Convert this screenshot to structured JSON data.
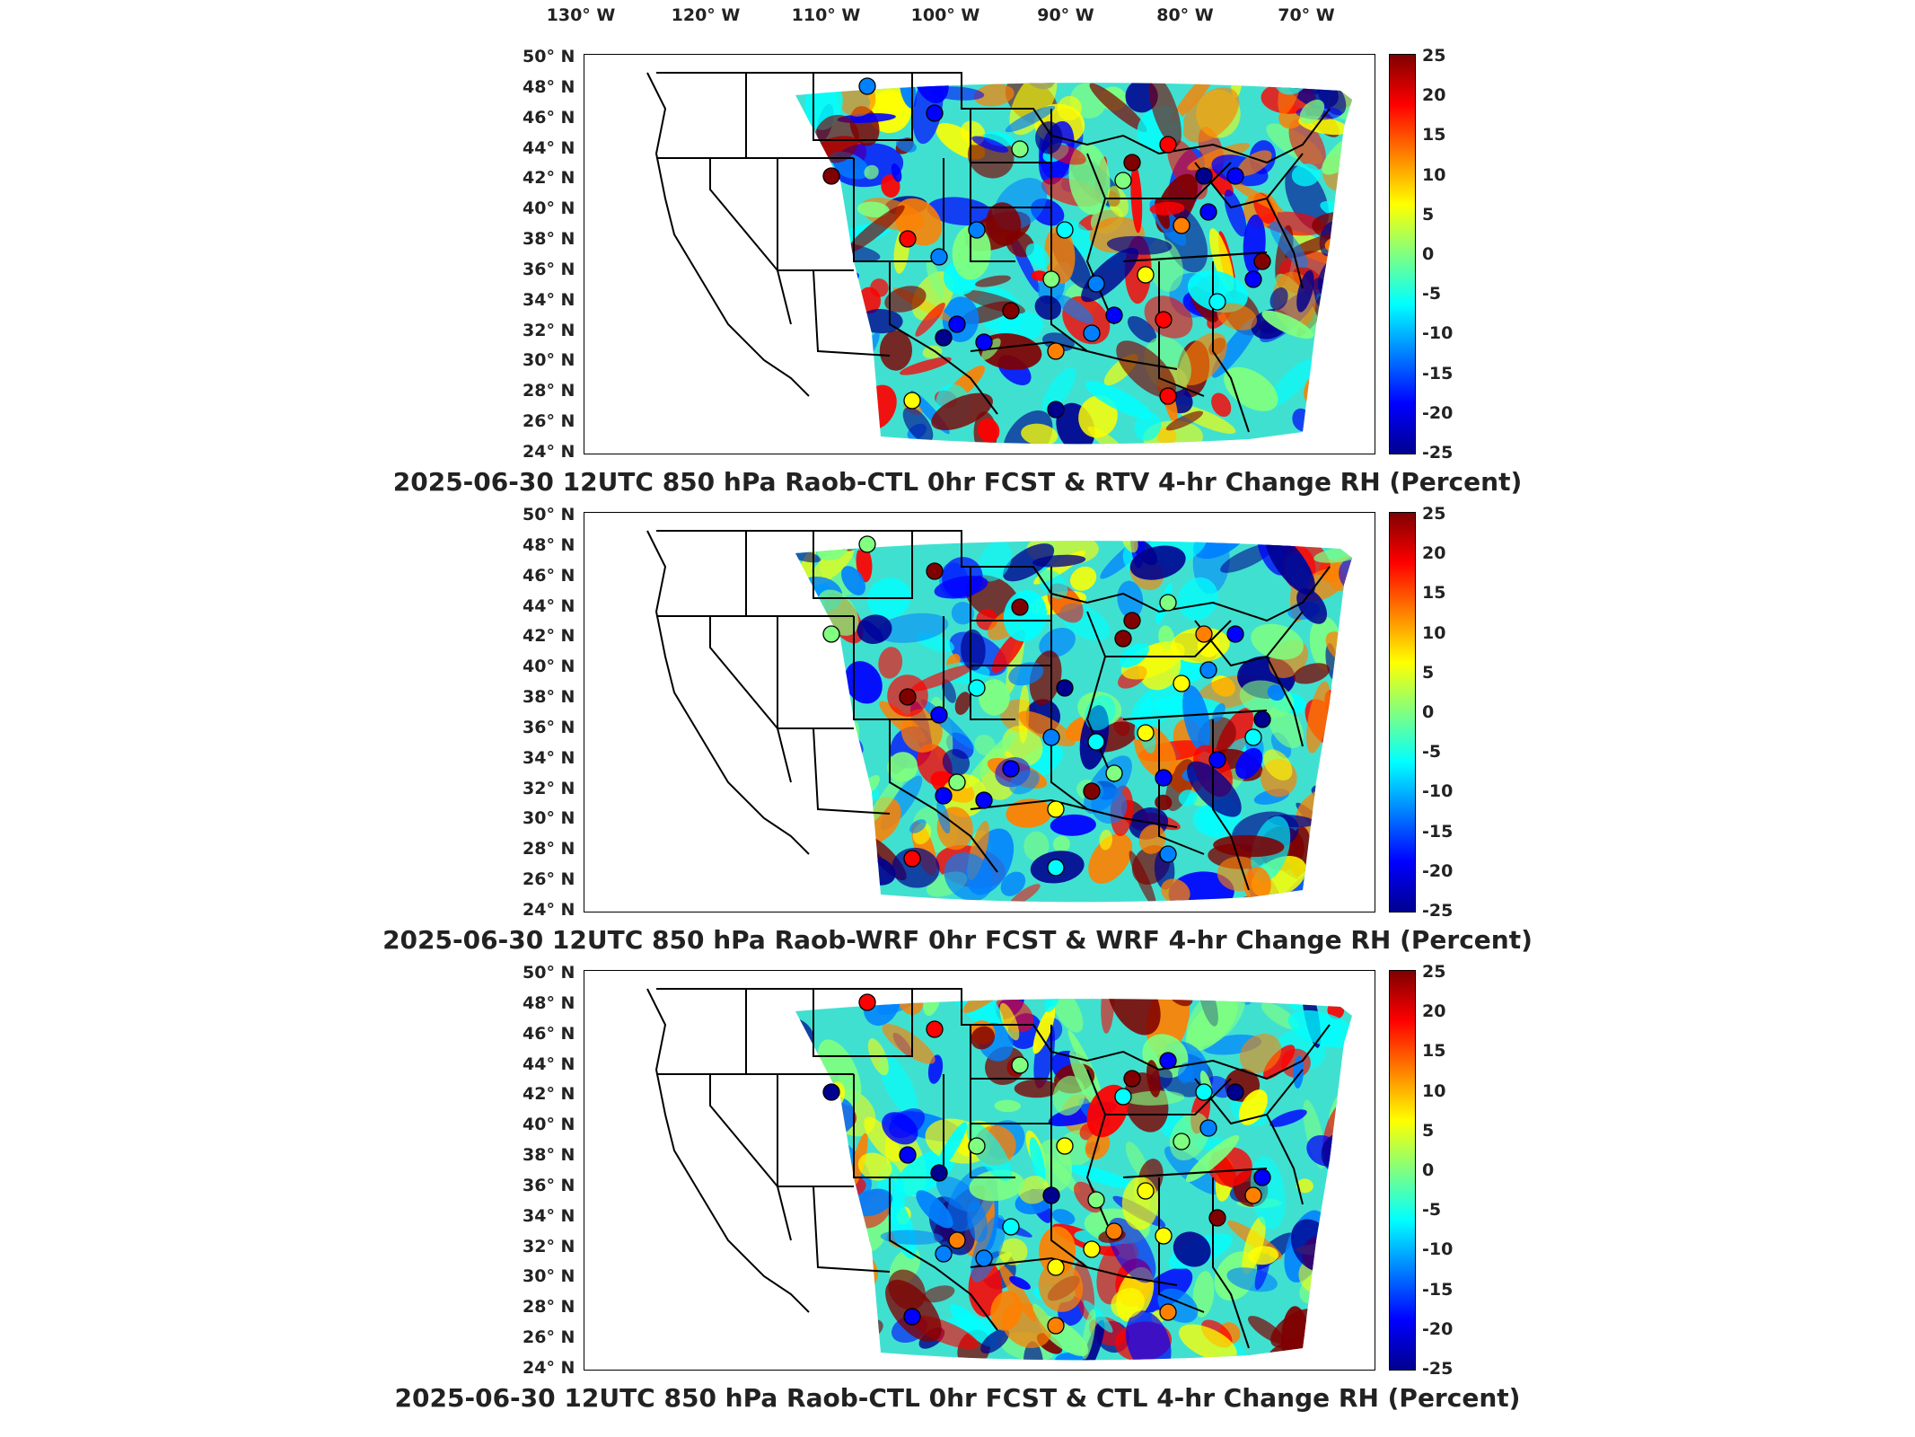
{
  "lon_labels": [
    "130° W",
    "120° W",
    "110° W",
    "100° W",
    "90° W",
    "80° W",
    "70° W"
  ],
  "lat_labels": [
    "50° N",
    "48° N",
    "46° N",
    "44° N",
    "42° N",
    "40° N",
    "38° N",
    "36° N",
    "34° N",
    "32° N",
    "30° N",
    "28° N",
    "26° N",
    "24° N"
  ],
  "colorbar_ticks": [
    "25",
    "20",
    "15",
    "10",
    "5",
    "0",
    "-5",
    "-10",
    "-15",
    "-20",
    "-25"
  ],
  "colorbar_range": [
    -25,
    25
  ],
  "colormap": [
    "#00008f",
    "#0000ff",
    "#0080ff",
    "#00ffff",
    "#80ff80",
    "#ffff00",
    "#ff8000",
    "#ff0000",
    "#800000"
  ],
  "panels": [
    {
      "title": "2025-06-30 12UTC 850 hPa Raob-CTL 0hr FCST & RTV 4-hr Change RH (Percent)"
    },
    {
      "title": "2025-06-30 12UTC 850 hPa Raob-WRF 0hr FCST & WRF 4-hr Change RH (Percent)"
    },
    {
      "title": "2025-06-30 12UTC 850 hPa Raob-CTL 0hr FCST & CTL 4-hr Change RH (Percent)"
    }
  ]
}
